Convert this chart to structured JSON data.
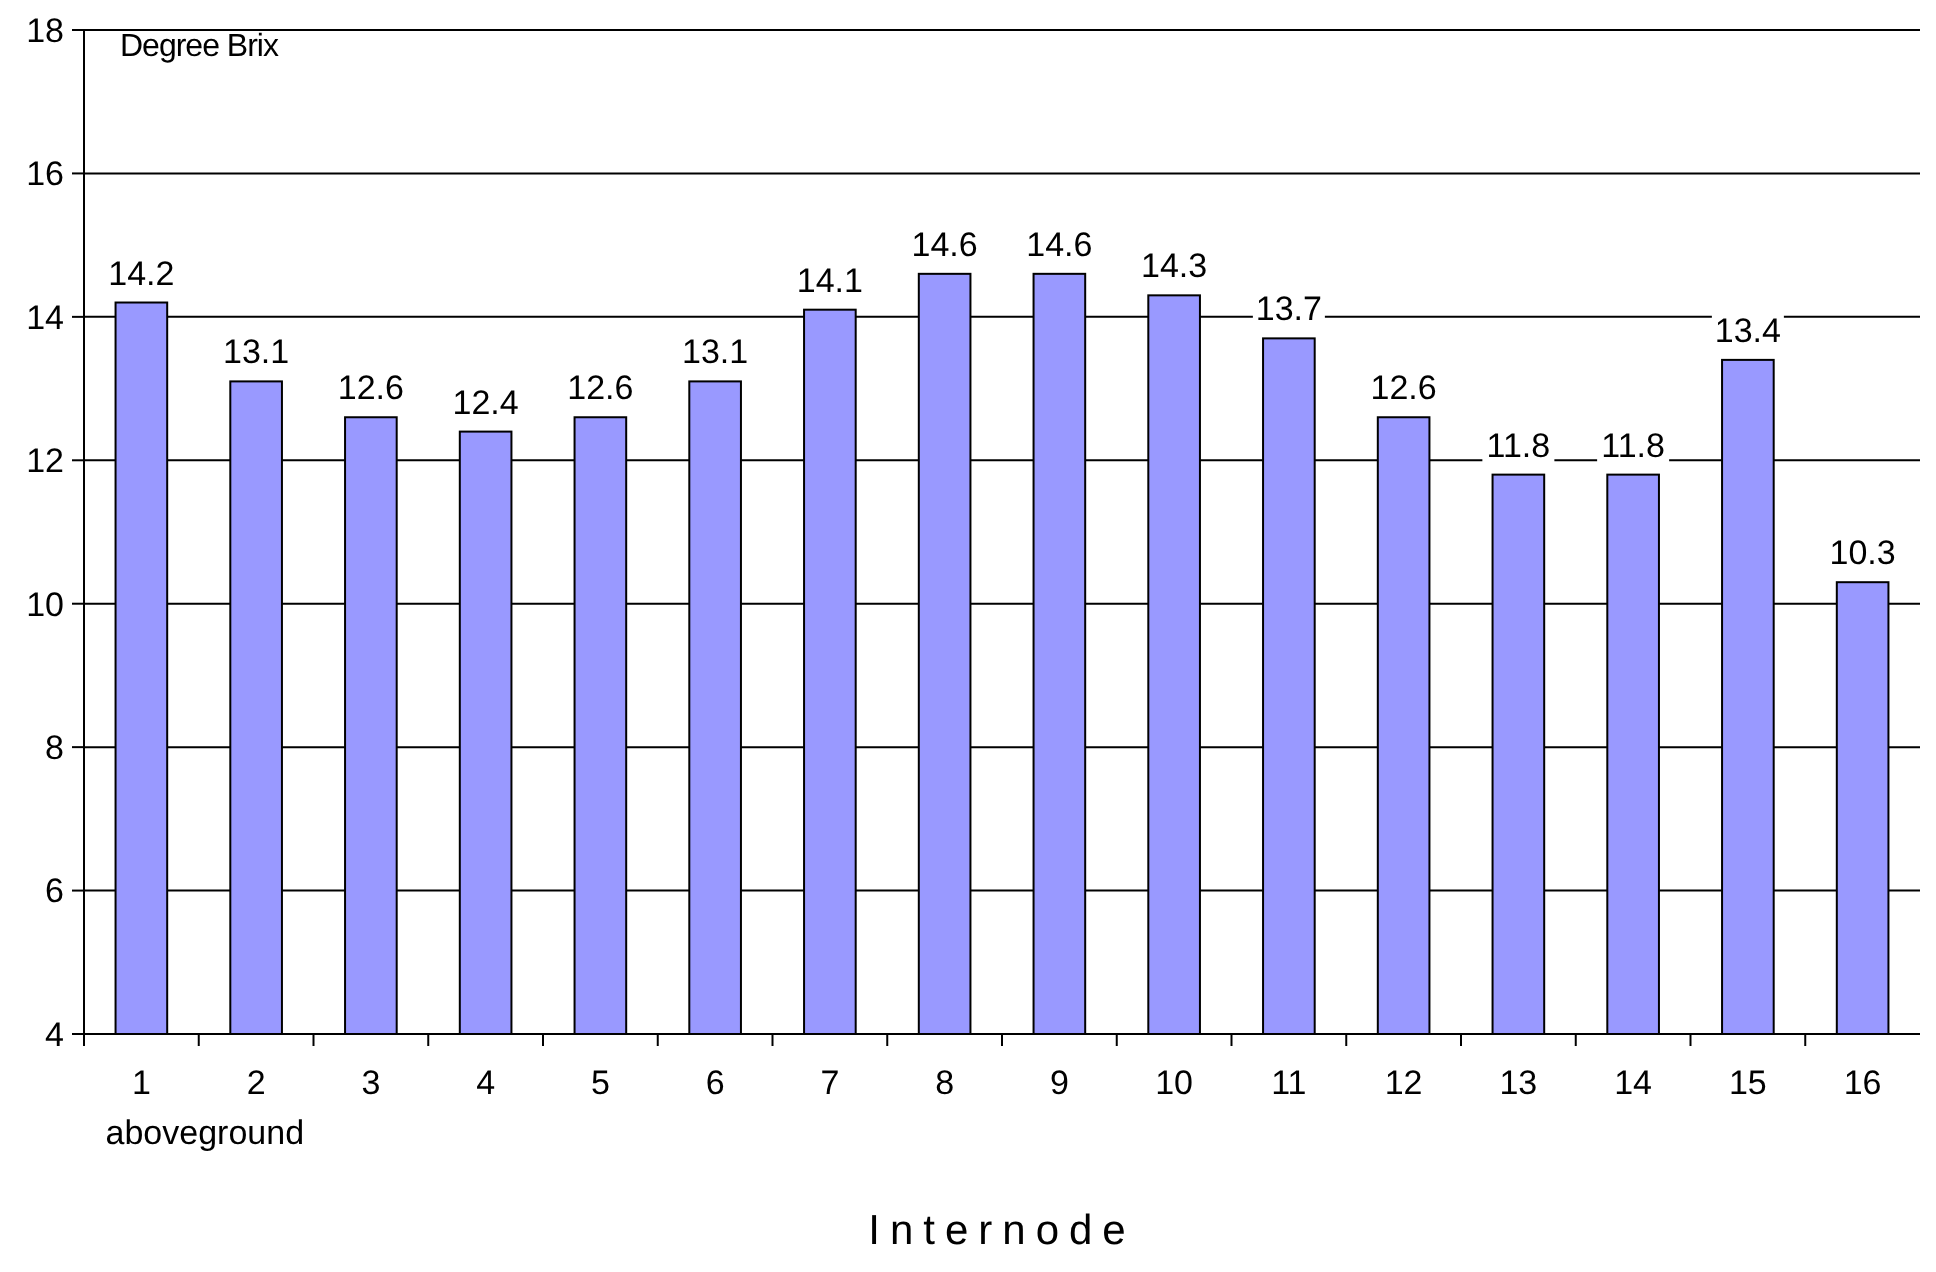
{
  "chart_data": {
    "type": "bar",
    "ylabel": "Degree Brix",
    "xlabel": "Internode",
    "categories": [
      "1",
      "2",
      "3",
      "4",
      "5",
      "6",
      "7",
      "8",
      "9",
      "10",
      "11",
      "12",
      "13",
      "14",
      "15",
      "16"
    ],
    "values": [
      14.2,
      13.1,
      12.6,
      12.4,
      12.6,
      13.1,
      14.1,
      14.6,
      14.6,
      14.3,
      13.7,
      12.6,
      11.8,
      11.8,
      13.4,
      10.3
    ],
    "color": "#9999ff",
    "ylim": [
      4,
      18
    ],
    "yticks": [
      4,
      6,
      8,
      10,
      12,
      14,
      16,
      18
    ],
    "grid": "y",
    "data_labels": true,
    "annotations": [
      "aboveground"
    ]
  }
}
